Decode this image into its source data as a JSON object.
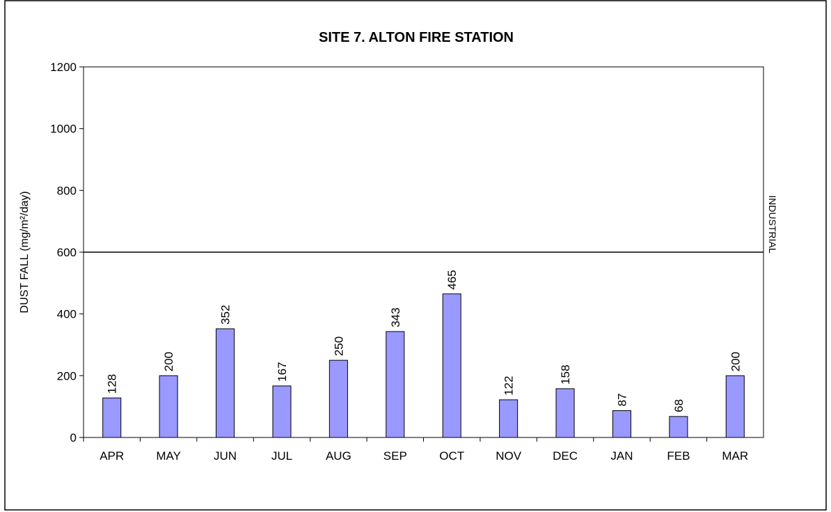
{
  "chart_data": {
    "type": "bar",
    "title": "SITE 7. ALTON FIRE STATION",
    "ylabel": "DUST FALL  (mg/m²/day)",
    "categories": [
      "APR",
      "MAY",
      "JUN",
      "JUL",
      "AUG",
      "SEP",
      "OCT",
      "NOV",
      "DEC",
      "JAN",
      "FEB",
      "MAR"
    ],
    "values": [
      128,
      200,
      352,
      167,
      250,
      343,
      465,
      122,
      158,
      87,
      68,
      200
    ],
    "color": "#9999ff",
    "ylim": [
      0,
      1200
    ],
    "yticks": [
      0,
      200,
      400,
      600,
      800,
      1000,
      1200
    ],
    "threshold": {
      "value": 600,
      "label": "INDUSTRIAL"
    }
  }
}
